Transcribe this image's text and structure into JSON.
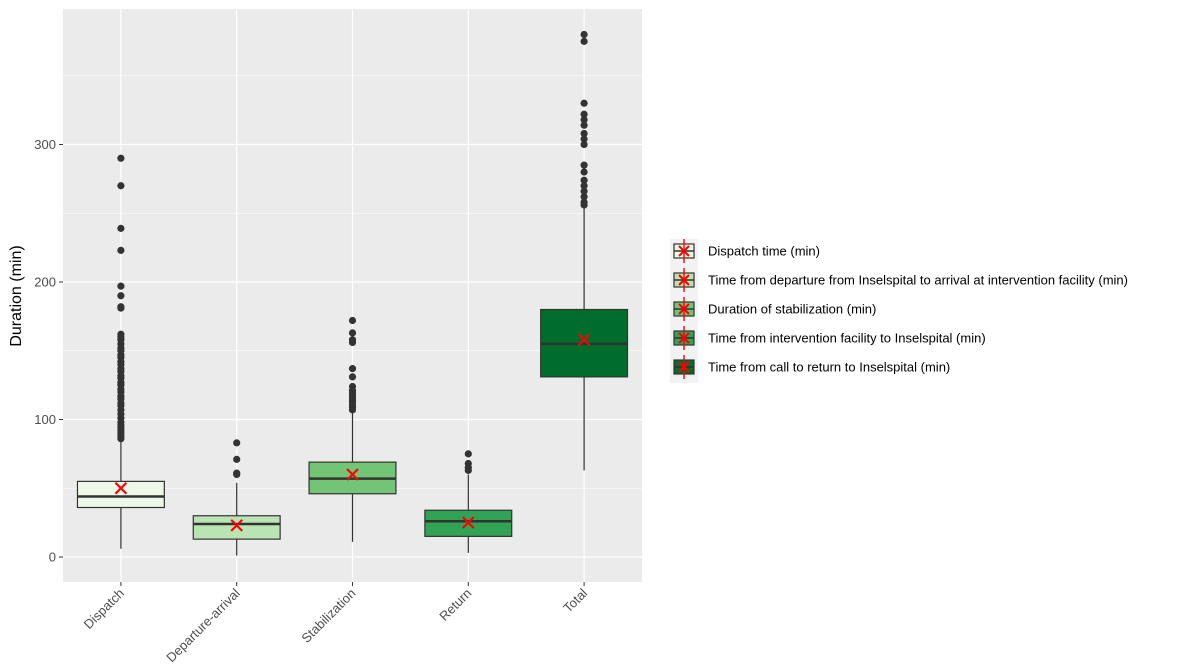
{
  "chart_data": {
    "type": "box",
    "title": "",
    "xlabel": "",
    "ylabel": "Duration (min)",
    "ylim": [
      -18,
      390
    ],
    "y_ticks": [
      0,
      100,
      200,
      300
    ],
    "y_minor_ticks": [
      50,
      150,
      250,
      350
    ],
    "grid": true,
    "legend_position": "right",
    "mean_marker_color": "#FF0000",
    "categories": [
      "Dispatch",
      "Departure-arrival",
      "Stabilization",
      "Return",
      "Total"
    ],
    "series": [
      {
        "name": "Dispatch",
        "legend": "Dispatch time (min)",
        "color": "#EDF8E9",
        "whisker_low": 6,
        "q1": 36,
        "median": 44,
        "q3": 55,
        "whisker_high": 84,
        "mean": 50,
        "outliers": [
          290,
          270,
          239,
          223,
          197,
          190,
          182,
          181,
          162,
          160,
          158,
          155,
          152,
          150,
          147,
          145,
          142,
          140,
          137,
          135,
          132,
          130,
          127,
          125,
          122,
          120,
          117,
          115,
          112,
          110,
          107,
          104,
          101,
          98,
          96,
          94,
          92,
          90,
          88,
          86
        ]
      },
      {
        "name": "Departure-arrival",
        "legend": "Time from departure from Inselspital to arrival at intervention facility (min)",
        "color": "#BAE4B3",
        "whisker_low": 1,
        "q1": 13,
        "median": 24,
        "q3": 30,
        "whisker_high": 54,
        "mean": 23,
        "outliers": [
          83,
          71,
          61,
          60
        ]
      },
      {
        "name": "Stabilization",
        "legend": "Duration of stabilization (min)",
        "color": "#74C476",
        "whisker_low": 11,
        "q1": 46,
        "median": 57,
        "q3": 69,
        "whisker_high": 105,
        "mean": 60,
        "outliers": [
          172,
          163,
          158,
          156,
          137,
          131,
          124,
          121,
          119,
          117,
          115,
          113,
          111,
          109,
          107
        ]
      },
      {
        "name": "Return",
        "legend": "Time from intervention facility to Inselspital (min)",
        "color": "#31A354",
        "whisker_low": 3,
        "q1": 15,
        "median": 26,
        "q3": 34,
        "whisker_high": 60,
        "mean": 25,
        "outliers": [
          75,
          68,
          65,
          63
        ]
      },
      {
        "name": "Total",
        "legend": "Time from call to return to Inselspital (min)",
        "color": "#006D2C",
        "whisker_low": 63,
        "q1": 131,
        "median": 155,
        "q3": 180,
        "whisker_high": 254,
        "mean": 158,
        "outliers": [
          380,
          375,
          330,
          322,
          318,
          314,
          308,
          304,
          300,
          285,
          280,
          274,
          270,
          266,
          262,
          258,
          256
        ]
      }
    ]
  }
}
